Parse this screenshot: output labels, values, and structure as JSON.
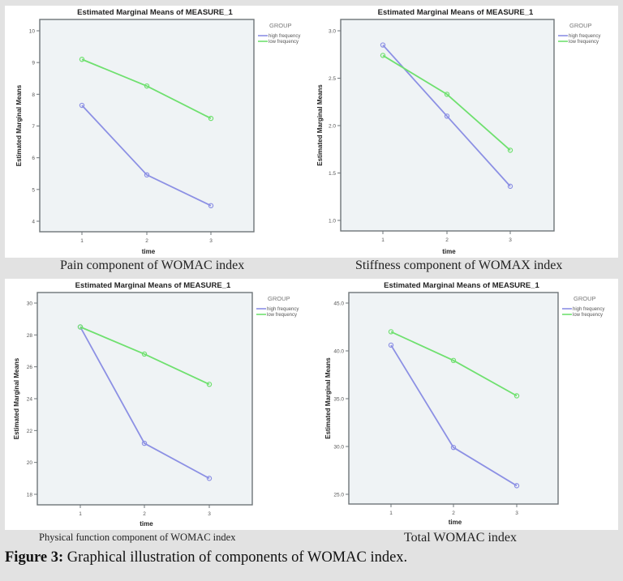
{
  "figure": {
    "label": "Figure 3",
    "separator": ":",
    "caption": " Graphical illustration of components of WOMAC index."
  },
  "colors": {
    "high_frequency": "#8c90e4",
    "low_frequency": "#6fe06f",
    "plot_bg": "#eff3f5",
    "axis": "#6e7478"
  },
  "chart_data": [
    {
      "type": "line",
      "title": "Estimated Marginal Means of MEASURE_1",
      "subtitle_caption": "Pain component of WOMAC index",
      "xlabel": "time",
      "ylabel": "Estimated Marginal Means",
      "categories": [
        "1",
        "2",
        "3"
      ],
      "ylim": [
        4,
        10
      ],
      "yticks": [
        4,
        5,
        6,
        7,
        8,
        9,
        10
      ],
      "ytick_labels": [
        "4",
        "5",
        "6",
        "7",
        "8",
        "9",
        "10"
      ],
      "legend_title": "GROUP",
      "legend_position": "top-right",
      "grid": false,
      "series": [
        {
          "name": "high frequency",
          "values": [
            7.65,
            5.46,
            4.49
          ]
        },
        {
          "name": "low frequency",
          "values": [
            9.1,
            8.26,
            7.24
          ]
        }
      ]
    },
    {
      "type": "line",
      "title": "Estimated Marginal Means of MEASURE_1",
      "subtitle_caption": "Stiffness component of WOMAX index",
      "xlabel": "time",
      "ylabel": "Estimated Marginal Means",
      "categories": [
        "1",
        "2",
        "3"
      ],
      "ylim": [
        1.0,
        3.0
      ],
      "yticks": [
        1.0,
        1.5,
        2.0,
        2.5,
        3.0
      ],
      "ytick_labels": [
        "1.0",
        "1.5",
        "2.0",
        "2.5",
        "3.0"
      ],
      "legend_title": "GROUP",
      "legend_position": "top-right",
      "grid": false,
      "series": [
        {
          "name": "high frequency",
          "values": [
            2.85,
            2.1,
            1.36
          ]
        },
        {
          "name": "low frequency",
          "values": [
            2.74,
            2.33,
            1.74
          ]
        }
      ]
    },
    {
      "type": "line",
      "title": "Estimated Marginal Means of MEASURE_1",
      "subtitle_caption": "Physical function component of WOMAC index",
      "xlabel": "time",
      "ylabel": "Estimated Marginal Means",
      "categories": [
        "1",
        "2",
        "3"
      ],
      "ylim": [
        18,
        30
      ],
      "yticks": [
        18,
        20,
        22,
        24,
        26,
        28,
        30
      ],
      "ytick_labels": [
        "18",
        "20",
        "22",
        "24",
        "26",
        "28",
        "30"
      ],
      "legend_title": "GROUP",
      "legend_position": "top-right",
      "grid": false,
      "series": [
        {
          "name": "high frequency",
          "values": [
            28.5,
            21.2,
            19.0
          ]
        },
        {
          "name": "low frequency",
          "values": [
            28.5,
            26.8,
            24.9
          ]
        }
      ]
    },
    {
      "type": "line",
      "title": "Estimated Marginal Means of MEASURE_1",
      "subtitle_caption": "Total WOMAC index",
      "xlabel": "time",
      "ylabel": "Estimated Marginal Means",
      "categories": [
        "1",
        "2",
        "3"
      ],
      "ylim": [
        25.0,
        45.0
      ],
      "yticks": [
        25.0,
        30.0,
        35.0,
        40.0,
        45.0
      ],
      "ytick_labels": [
        "25.0",
        "30.0",
        "35.0",
        "40.0",
        "45.0"
      ],
      "legend_title": "GROUP",
      "legend_position": "top-right",
      "grid": false,
      "series": [
        {
          "name": "high frequency",
          "values": [
            40.6,
            29.9,
            25.9
          ]
        },
        {
          "name": "low frequency",
          "values": [
            42.0,
            39.0,
            35.3
          ]
        }
      ]
    }
  ]
}
